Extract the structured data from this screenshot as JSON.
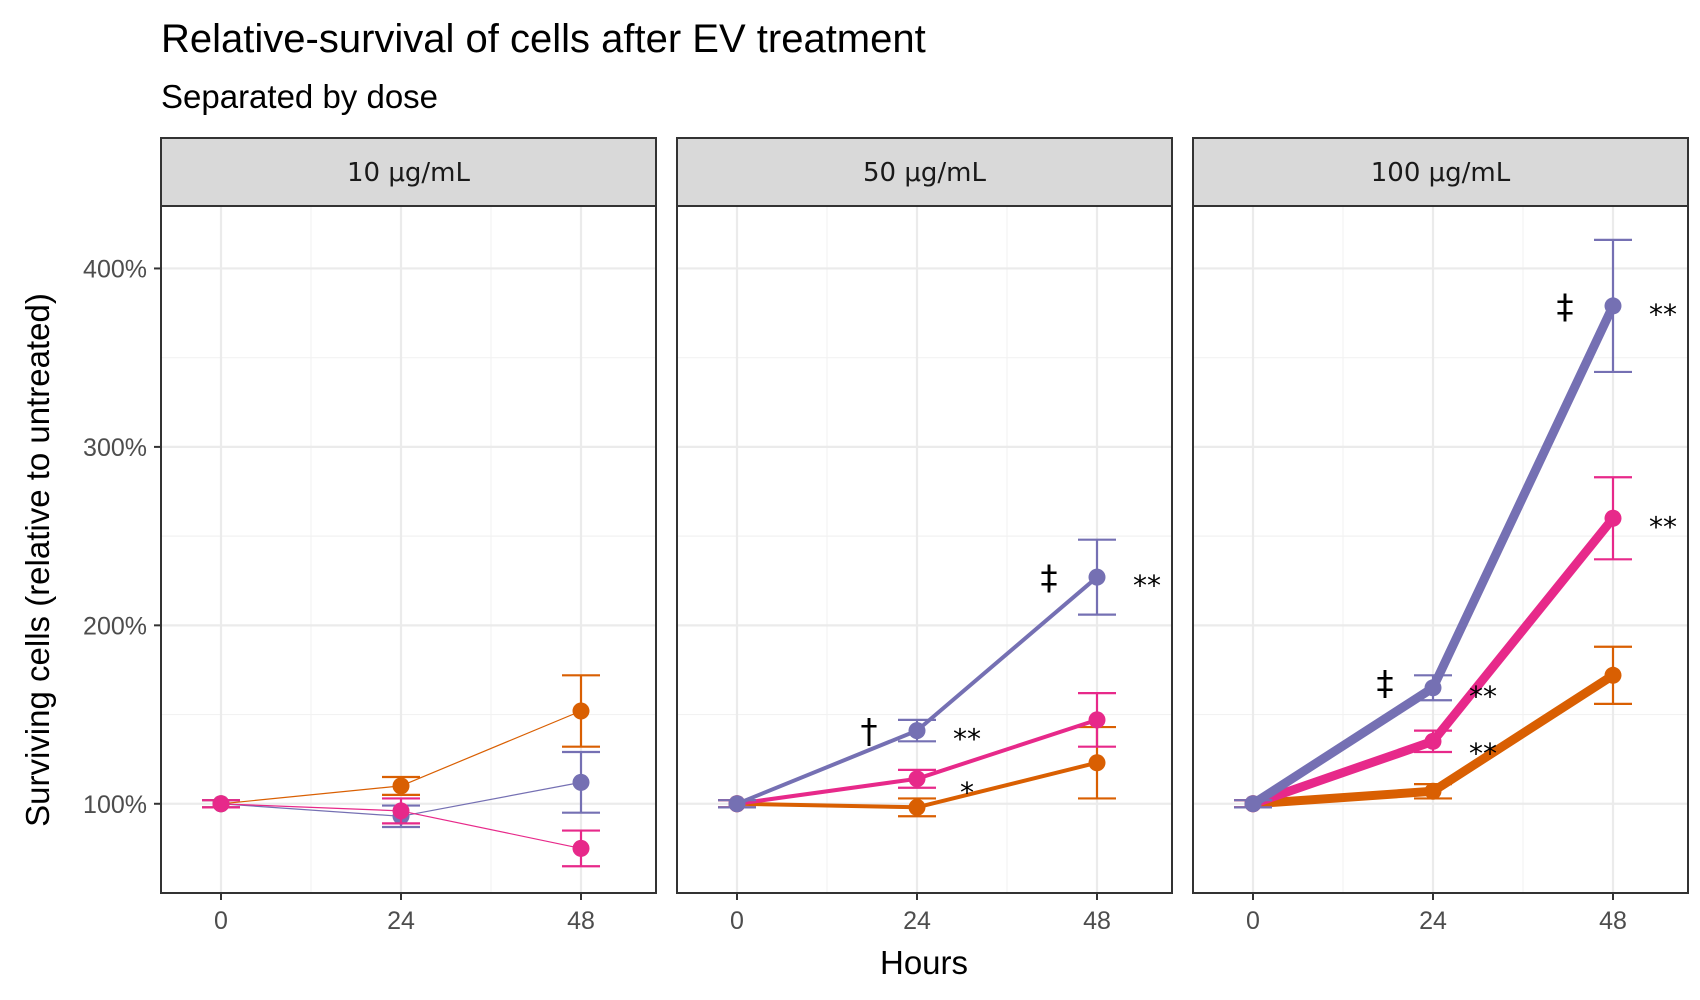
{
  "chart_data": {
    "type": "line",
    "title": "Relative-survival of cells after EV treatment",
    "subtitle": "Separated by dose",
    "xlabel": "Hours",
    "ylabel": "Surviving cells (relative to untreated)",
    "x": [
      0,
      24,
      48
    ],
    "xlim": [
      -8,
      58
    ],
    "ylim": [
      50,
      435
    ],
    "y_ticks": [
      100,
      200,
      300,
      400
    ],
    "y_tick_labels": [
      "100%",
      "200%",
      "300%",
      "400%"
    ],
    "grid": true,
    "legend": "none",
    "colors": [
      "#d95f02",
      "#7570b3",
      "#e7298a"
    ],
    "facets": [
      {
        "label": "10 μg/mL",
        "line_weight": 1,
        "series": [
          {
            "color": "#d95f02",
            "values": [
              100,
              110,
              152
            ],
            "err": [
              2,
              5,
              20
            ]
          },
          {
            "color": "#7570b3",
            "values": [
              100,
              93,
              112
            ],
            "err": [
              2,
              6,
              17
            ]
          },
          {
            "color": "#e7298a",
            "values": [
              100,
              96,
              75
            ],
            "err": [
              2,
              7,
              10
            ]
          }
        ],
        "annotations": []
      },
      {
        "label": "50 μg/mL",
        "line_weight": 2,
        "series": [
          {
            "color": "#d95f02",
            "values": [
              100,
              98,
              123
            ],
            "err": [
              2,
              5,
              20
            ]
          },
          {
            "color": "#e7298a",
            "values": [
              100,
              114,
              147
            ],
            "err": [
              2,
              5,
              15
            ]
          },
          {
            "color": "#7570b3",
            "values": [
              100,
              141,
              227
            ],
            "err": [
              2,
              6,
              21
            ]
          }
        ],
        "annotations": [
          {
            "text": "†",
            "x": 24,
            "y": 141,
            "side": "left"
          },
          {
            "text": "**",
            "x": 24,
            "y": 141,
            "side": "right"
          },
          {
            "text": "*",
            "x": 24,
            "y": 111,
            "side": "right"
          },
          {
            "text": "‡",
            "x": 48,
            "y": 227,
            "side": "left"
          },
          {
            "text": "**",
            "x": 48,
            "y": 227,
            "side": "right"
          }
        ]
      },
      {
        "label": "100 μg/mL",
        "line_weight": 3,
        "series": [
          {
            "color": "#d95f02",
            "values": [
              100,
              107,
              172
            ],
            "err": [
              2,
              4,
              16
            ]
          },
          {
            "color": "#e7298a",
            "values": [
              100,
              135,
              260
            ],
            "err": [
              2,
              6,
              23
            ]
          },
          {
            "color": "#7570b3",
            "values": [
              100,
              165,
              379
            ],
            "err": [
              2,
              7,
              37
            ]
          }
        ],
        "annotations": [
          {
            "text": "‡",
            "x": 24,
            "y": 168,
            "side": "left"
          },
          {
            "text": "**",
            "x": 24,
            "y": 165,
            "side": "right"
          },
          {
            "text": "**",
            "x": 24,
            "y": 133,
            "side": "right"
          },
          {
            "text": "‡",
            "x": 48,
            "y": 379,
            "side": "left"
          },
          {
            "text": "**",
            "x": 48,
            "y": 379,
            "side": "right"
          },
          {
            "text": "**",
            "x": 48,
            "y": 260,
            "side": "right"
          }
        ]
      }
    ]
  }
}
